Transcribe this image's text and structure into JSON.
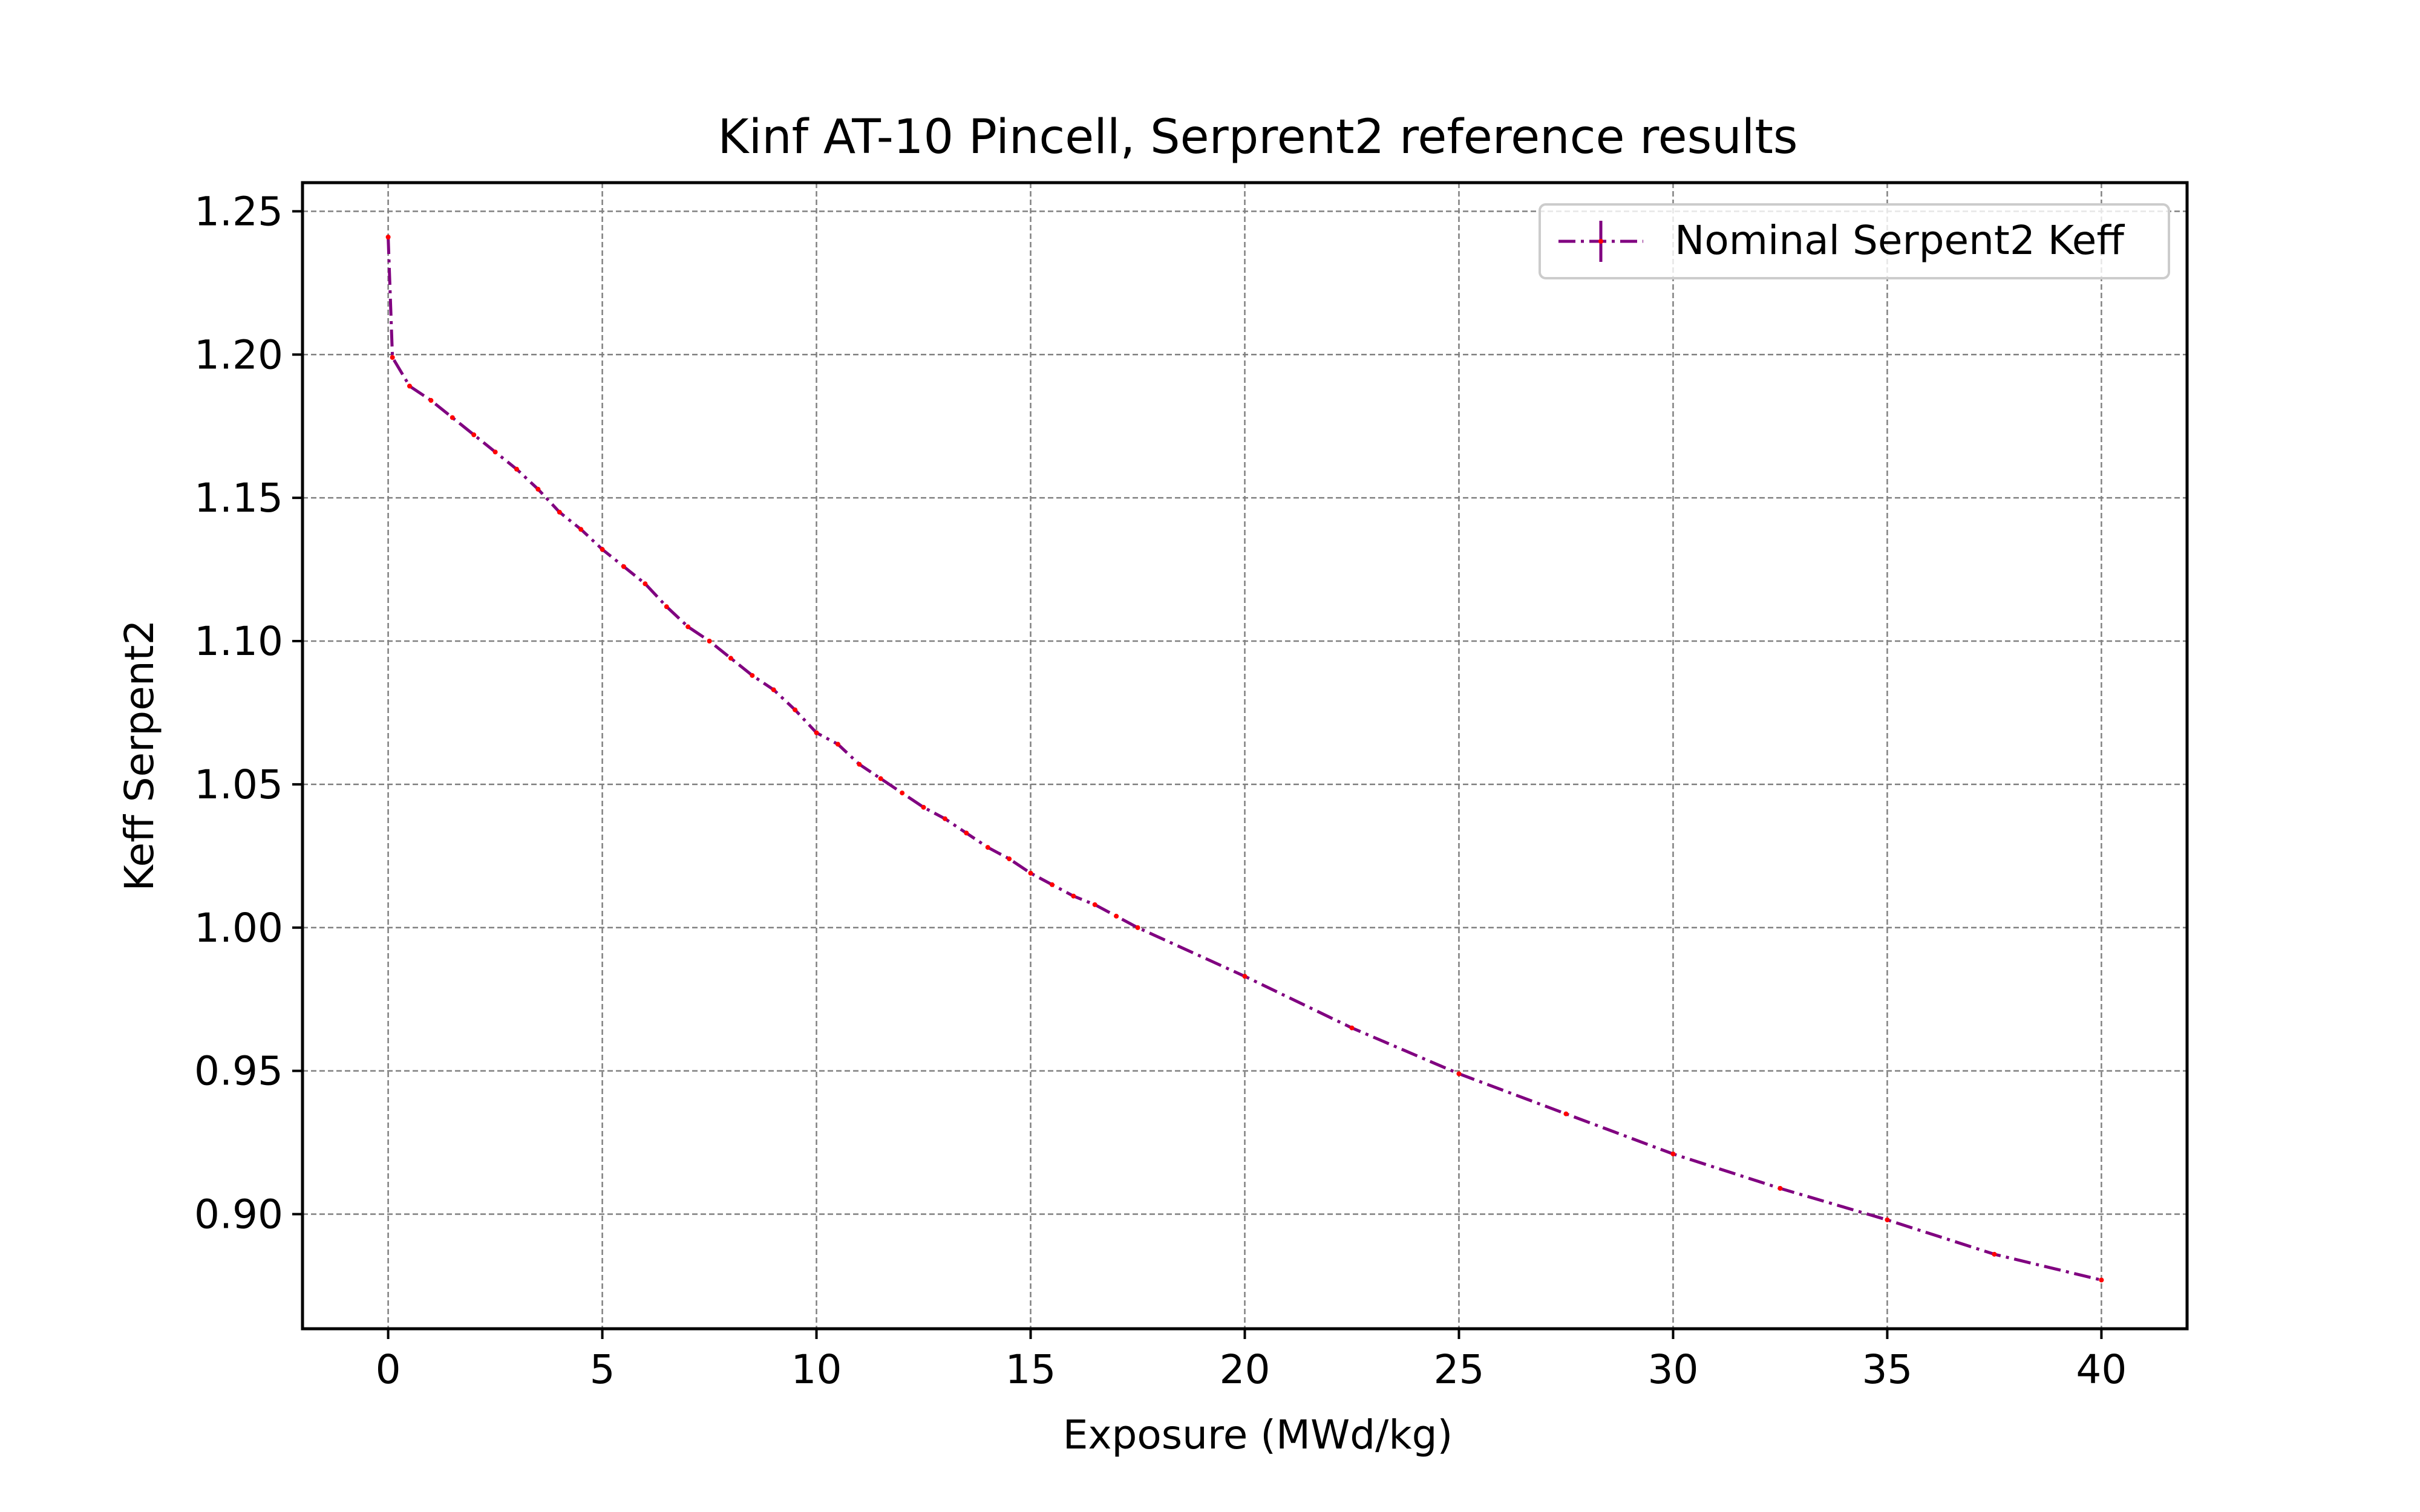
{
  "chart_data": {
    "type": "line",
    "title": "Kinf AT-10 Pincell, Serprent2 reference results",
    "xlabel": "Exposure (MWd/kg)",
    "ylabel": "Keff Serpent2",
    "xlim": [
      -2,
      42
    ],
    "ylim": [
      0.86,
      1.26
    ],
    "xticks": [
      0,
      5,
      10,
      15,
      20,
      25,
      30,
      35,
      40
    ],
    "xtick_labels": [
      "0",
      "5",
      "10",
      "15",
      "20",
      "25",
      "30",
      "35",
      "40"
    ],
    "yticks": [
      0.9,
      0.95,
      1.0,
      1.05,
      1.1,
      1.15,
      1.2,
      1.25
    ],
    "ytick_labels": [
      "0.90",
      "0.95",
      "1.00",
      "1.05",
      "1.10",
      "1.15",
      "1.20",
      "1.25"
    ],
    "grid": true,
    "legend_position": "upper right",
    "series": [
      {
        "name": "Nominal Serpent2 Keff",
        "line_color": "#800080",
        "marker_color": "#ff0000",
        "line_style": "dashdot",
        "x": [
          0,
          0.1,
          0.5,
          1.0,
          1.5,
          2.0,
          2.5,
          3.0,
          3.5,
          4.0,
          4.5,
          5.0,
          5.5,
          6.0,
          6.5,
          7.0,
          7.5,
          8.0,
          8.5,
          9.0,
          9.5,
          10.0,
          10.5,
          11.0,
          11.5,
          12.0,
          12.5,
          13.0,
          13.5,
          14.0,
          14.5,
          15.0,
          15.5,
          16.0,
          16.5,
          17.0,
          17.5,
          20.0,
          22.5,
          25.0,
          27.5,
          30.0,
          32.5,
          35.0,
          37.5,
          40.0
        ],
        "y": [
          1.241,
          1.199,
          1.189,
          1.184,
          1.178,
          1.172,
          1.166,
          1.16,
          1.153,
          1.145,
          1.139,
          1.132,
          1.126,
          1.12,
          1.112,
          1.105,
          1.1,
          1.094,
          1.088,
          1.083,
          1.076,
          1.068,
          1.064,
          1.057,
          1.052,
          1.047,
          1.042,
          1.038,
          1.033,
          1.028,
          1.024,
          1.019,
          1.015,
          1.011,
          1.008,
          1.004,
          1.0,
          0.983,
          0.965,
          0.949,
          0.935,
          0.921,
          0.909,
          0.898,
          0.886,
          0.877
        ]
      }
    ]
  }
}
